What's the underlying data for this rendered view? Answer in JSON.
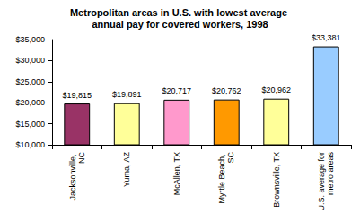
{
  "chart_data": {
    "type": "bar",
    "title": "Metropolitan areas in U.S. with lowest average annual pay for covered workers, 1998",
    "categories": [
      "Jacksonville, NC",
      "Yuma, AZ",
      "McAllen, TX",
      "Myrtle Beach, SC",
      "Brownsville, TX",
      "U.S. average for metro areas"
    ],
    "values": [
      19815,
      19891,
      20717,
      20762,
      20962,
      33381
    ],
    "value_labels": [
      "$19,815",
      "$19,891",
      "$20,717",
      "$20,762",
      "$20,962",
      "$33,381"
    ],
    "colors": [
      "#993366",
      "#ffff99",
      "#ff99cc",
      "#ff9900",
      "#ffff99",
      "#99ccff"
    ],
    "ylim": [
      10000,
      35000
    ],
    "yticks": [
      {
        "value": 10000,
        "label": "$10,000"
      },
      {
        "value": 15000,
        "label": "$15,000"
      },
      {
        "value": 20000,
        "label": "$20,000"
      },
      {
        "value": 25000,
        "label": "$25,000"
      },
      {
        "value": 30000,
        "label": "$30,000"
      },
      {
        "value": 35000,
        "label": "$35,000"
      }
    ],
    "grid": false,
    "data_labels": true
  }
}
